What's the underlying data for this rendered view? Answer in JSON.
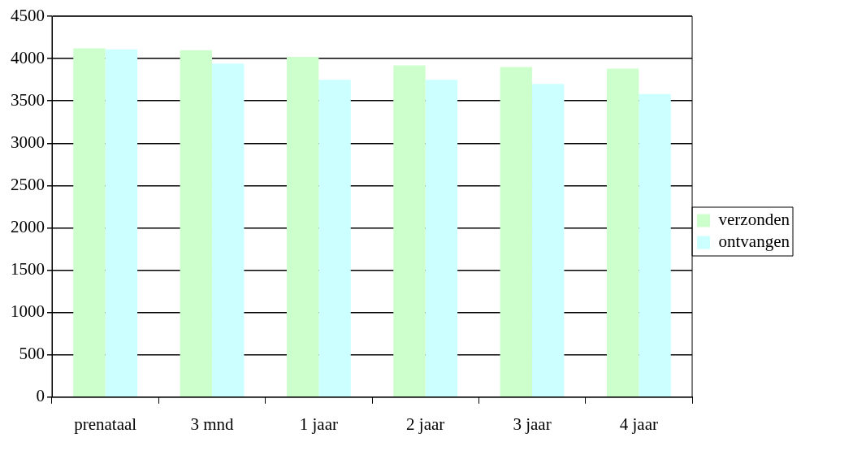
{
  "chart_data": {
    "type": "bar",
    "categories": [
      "prenataal",
      "3 mnd",
      "1 jaar",
      "2 jaar",
      "3 jaar",
      "4 jaar"
    ],
    "series": [
      {
        "name": "verzonden",
        "color": "#ccffcc",
        "values": [
          4120,
          4100,
          4020,
          3920,
          3900,
          3880
        ]
      },
      {
        "name": "ontvangen",
        "color": "#ccffff",
        "values": [
          4110,
          3940,
          3750,
          3750,
          3700,
          3580
        ]
      }
    ],
    "ylim": [
      0,
      4500
    ],
    "yticks": [
      0,
      500,
      1000,
      1500,
      2000,
      2500,
      3000,
      3500,
      4000,
      4500
    ],
    "grid": "y",
    "legend": "right"
  }
}
